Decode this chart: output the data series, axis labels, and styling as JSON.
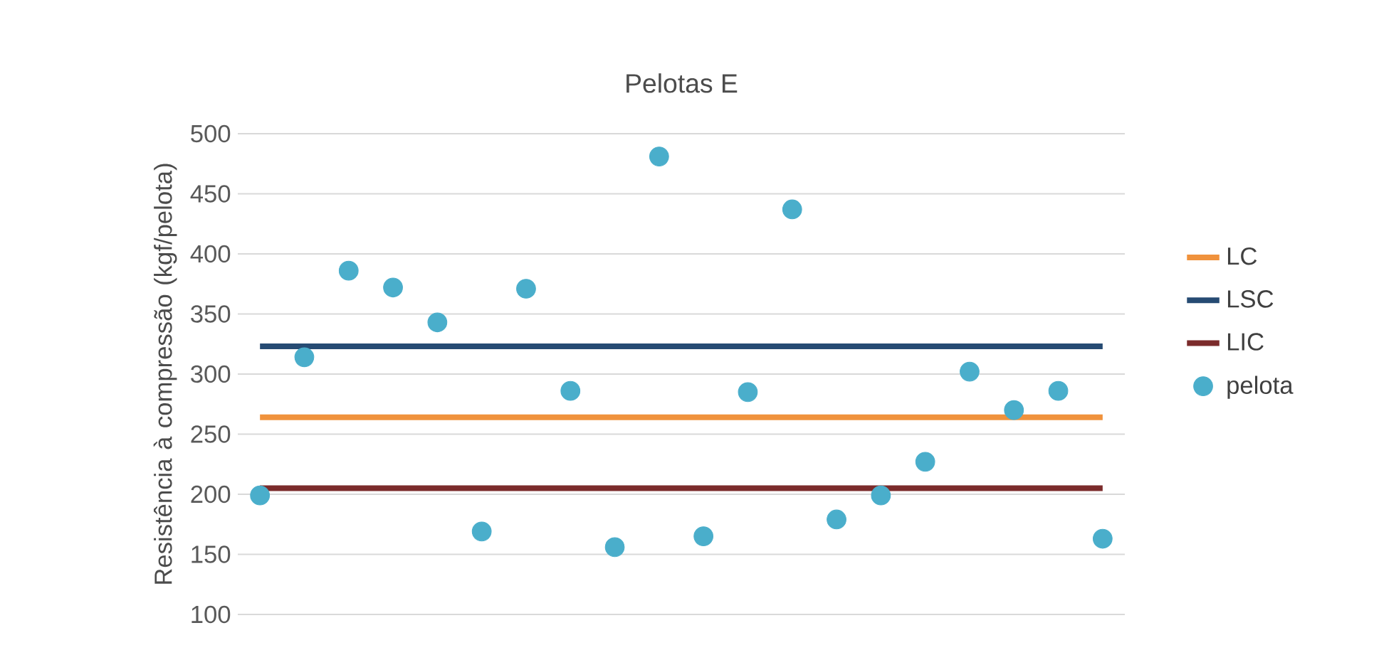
{
  "chart_data": {
    "type": "scatter",
    "title": "Pelotas E",
    "ylabel": "Resistência à compressão (kgf/pelota)",
    "categories": [
      null,
      null,
      null,
      null,
      null,
      null,
      null,
      null,
      null,
      null,
      null,
      null,
      null,
      null,
      null,
      null,
      null,
      null,
      null,
      null
    ],
    "series": [
      {
        "name": "LC",
        "type": "line",
        "marker": "none",
        "color": "#f0923c",
        "values": [
          264,
          264,
          264,
          264,
          264,
          264,
          264,
          264,
          264,
          264,
          264,
          264,
          264,
          264,
          264,
          264,
          264,
          264,
          264,
          264
        ]
      },
      {
        "name": "LSC",
        "type": "line",
        "marker": "none",
        "color": "#264b73",
        "values": [
          323,
          323,
          323,
          323,
          323,
          323,
          323,
          323,
          323,
          323,
          323,
          323,
          323,
          323,
          323,
          323,
          323,
          323,
          323,
          323
        ]
      },
      {
        "name": "LIC",
        "type": "line",
        "marker": "none",
        "color": "#7b2b2b",
        "values": [
          205,
          205,
          205,
          205,
          205,
          205,
          205,
          205,
          205,
          205,
          205,
          205,
          205,
          205,
          205,
          205,
          205,
          205,
          205,
          205
        ]
      },
      {
        "name": "pelota",
        "color": "#4aaecb",
        "values": [
          199,
          314,
          386,
          372,
          343,
          169,
          371,
          286,
          156,
          481,
          165,
          285,
          437,
          179,
          199,
          227,
          302,
          270,
          286,
          163
        ]
      }
    ],
    "ylim": [
      100,
      500
    ],
    "yticks": [
      100,
      150,
      200,
      250,
      300,
      350,
      400,
      450,
      500
    ],
    "grid": "y",
    "legend": "right",
    "marker": "circle"
  }
}
